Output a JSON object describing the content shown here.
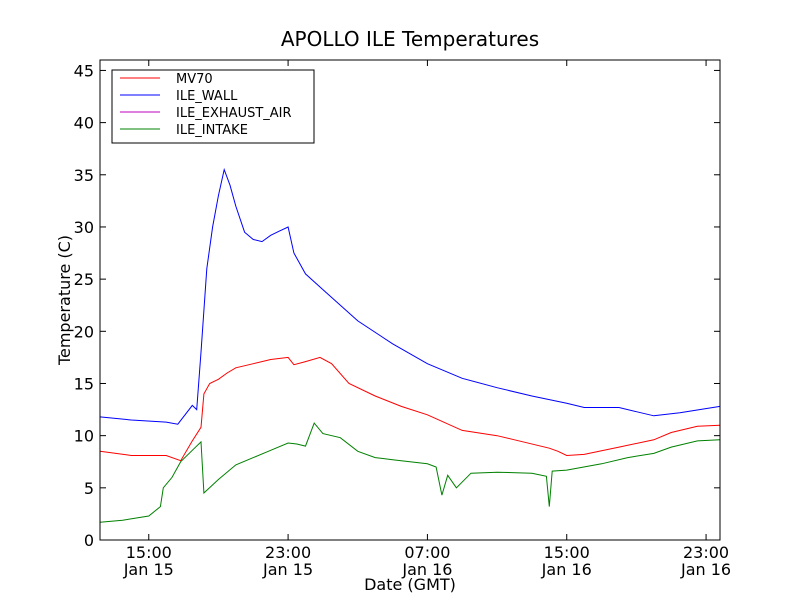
{
  "chart_data": {
    "type": "line",
    "title": "APOLLO ILE Temperatures",
    "xlabel": "Date (GMT)",
    "ylabel": "Temperature (C)",
    "ylim": [
      0,
      46
    ],
    "xlim": [
      "2014-01-15T12:12",
      "2014-01-16T23:48"
    ],
    "y_ticks": [
      0,
      5,
      10,
      15,
      20,
      25,
      30,
      35,
      40,
      45
    ],
    "x_ticks": [
      {
        "t": "2014-01-15T15:00",
        "time": "15:00",
        "date": "Jan 15"
      },
      {
        "t": "2014-01-15T23:00",
        "time": "23:00",
        "date": "Jan 15"
      },
      {
        "t": "2014-01-16T07:00",
        "time": "07:00",
        "date": "Jan 16"
      },
      {
        "t": "2014-01-16T15:00",
        "time": "15:00",
        "date": "Jan 16"
      },
      {
        "t": "2014-01-16T23:00",
        "time": "23:00",
        "date": "Jan 16"
      }
    ],
    "grid": false,
    "legend_placement": "top-left",
    "series": [
      {
        "name": "MV70",
        "color": "#ff0000",
        "points": [
          [
            "2014-01-15T12:12",
            8.5
          ],
          [
            "2014-01-15T14:00",
            8.1
          ],
          [
            "2014-01-15T16:00",
            8.1
          ],
          [
            "2014-01-15T16:50",
            7.6
          ],
          [
            "2014-01-15T17:30",
            9.5
          ],
          [
            "2014-01-15T18:00",
            10.8
          ],
          [
            "2014-01-15T18:10",
            14.0
          ],
          [
            "2014-01-15T18:30",
            15.0
          ],
          [
            "2014-01-15T19:00",
            15.4
          ],
          [
            "2014-01-15T19:30",
            16.0
          ],
          [
            "2014-01-15T20:00",
            16.5
          ],
          [
            "2014-01-15T21:00",
            16.9
          ],
          [
            "2014-01-15T22:00",
            17.3
          ],
          [
            "2014-01-15T23:00",
            17.5
          ],
          [
            "2014-01-15T23:20",
            16.8
          ],
          [
            "2014-01-16T00:00",
            17.1
          ],
          [
            "2014-01-16T00:50",
            17.5
          ],
          [
            "2014-01-16T01:30",
            16.9
          ],
          [
            "2014-01-16T02:30",
            15.0
          ],
          [
            "2014-01-16T04:00",
            13.8
          ],
          [
            "2014-01-16T05:30",
            12.8
          ],
          [
            "2014-01-16T07:00",
            12.0
          ],
          [
            "2014-01-16T09:00",
            10.5
          ],
          [
            "2014-01-16T11:00",
            10.0
          ],
          [
            "2014-01-16T12:00",
            9.6
          ],
          [
            "2014-01-16T14:00",
            8.8
          ],
          [
            "2014-01-16T14:30",
            8.5
          ],
          [
            "2014-01-16T15:00",
            8.1
          ],
          [
            "2014-01-16T16:00",
            8.2
          ],
          [
            "2014-01-16T18:00",
            8.9
          ],
          [
            "2014-01-16T20:00",
            9.6
          ],
          [
            "2014-01-16T21:00",
            10.3
          ],
          [
            "2014-01-16T22:30",
            10.9
          ],
          [
            "2014-01-16T23:48",
            11.0
          ]
        ]
      },
      {
        "name": "ILE_WALL",
        "color": "#0000ff",
        "points": [
          [
            "2014-01-15T12:12",
            11.8
          ],
          [
            "2014-01-15T14:00",
            11.5
          ],
          [
            "2014-01-15T16:00",
            11.3
          ],
          [
            "2014-01-15T16:40",
            11.1
          ],
          [
            "2014-01-15T17:30",
            12.9
          ],
          [
            "2014-01-15T17:45",
            12.5
          ],
          [
            "2014-01-15T18:00",
            18.0
          ],
          [
            "2014-01-15T18:20",
            26.0
          ],
          [
            "2014-01-15T18:40",
            30.0
          ],
          [
            "2014-01-15T19:00",
            33.0
          ],
          [
            "2014-01-15T19:20",
            35.5
          ],
          [
            "2014-01-15T19:40",
            34.0
          ],
          [
            "2014-01-15T20:00",
            32.0
          ],
          [
            "2014-01-15T20:30",
            29.5
          ],
          [
            "2014-01-15T21:00",
            28.8
          ],
          [
            "2014-01-15T21:30",
            28.6
          ],
          [
            "2014-01-15T22:00",
            29.2
          ],
          [
            "2014-01-15T22:30",
            29.6
          ],
          [
            "2014-01-15T23:00",
            30.0
          ],
          [
            "2014-01-15T23:20",
            27.5
          ],
          [
            "2014-01-16T00:00",
            25.5
          ],
          [
            "2014-01-16T01:00",
            24.0
          ],
          [
            "2014-01-16T03:00",
            21.0
          ],
          [
            "2014-01-16T05:00",
            18.8
          ],
          [
            "2014-01-16T07:00",
            16.9
          ],
          [
            "2014-01-16T09:00",
            15.5
          ],
          [
            "2014-01-16T11:00",
            14.6
          ],
          [
            "2014-01-16T13:00",
            13.8
          ],
          [
            "2014-01-16T15:00",
            13.1
          ],
          [
            "2014-01-16T16:00",
            12.7
          ],
          [
            "2014-01-16T18:00",
            12.7
          ],
          [
            "2014-01-16T19:00",
            12.3
          ],
          [
            "2014-01-16T20:00",
            11.9
          ],
          [
            "2014-01-16T21:30",
            12.2
          ],
          [
            "2014-01-16T23:48",
            12.8
          ]
        ]
      },
      {
        "name": "ILE_EXHAUST_AIR",
        "color": "#bf00bf",
        "points": []
      },
      {
        "name": "ILE_INTAKE",
        "color": "#008000",
        "points": [
          [
            "2014-01-15T12:12",
            1.7
          ],
          [
            "2014-01-15T13:30",
            1.9
          ],
          [
            "2014-01-15T15:00",
            2.3
          ],
          [
            "2014-01-15T15:40",
            3.2
          ],
          [
            "2014-01-15T15:50",
            5.0
          ],
          [
            "2014-01-15T16:20",
            6.0
          ],
          [
            "2014-01-15T16:50",
            7.5
          ],
          [
            "2014-01-15T17:30",
            8.6
          ],
          [
            "2014-01-15T18:00",
            9.4
          ],
          [
            "2014-01-15T18:10",
            4.5
          ],
          [
            "2014-01-15T19:00",
            5.8
          ],
          [
            "2014-01-15T20:00",
            7.2
          ],
          [
            "2014-01-15T21:00",
            7.9
          ],
          [
            "2014-01-15T22:00",
            8.6
          ],
          [
            "2014-01-15T23:00",
            9.3
          ],
          [
            "2014-01-15T23:30",
            9.2
          ],
          [
            "2014-01-16T00:00",
            9.0
          ],
          [
            "2014-01-16T00:30",
            11.2
          ],
          [
            "2014-01-16T01:00",
            10.2
          ],
          [
            "2014-01-16T02:00",
            9.8
          ],
          [
            "2014-01-16T03:00",
            8.5
          ],
          [
            "2014-01-16T04:00",
            7.9
          ],
          [
            "2014-01-16T05:00",
            7.7
          ],
          [
            "2014-01-16T06:00",
            7.5
          ],
          [
            "2014-01-16T07:00",
            7.3
          ],
          [
            "2014-01-16T07:30",
            7.0
          ],
          [
            "2014-01-16T07:50",
            4.3
          ],
          [
            "2014-01-16T08:10",
            6.2
          ],
          [
            "2014-01-16T08:40",
            5.0
          ],
          [
            "2014-01-16T09:30",
            6.4
          ],
          [
            "2014-01-16T11:00",
            6.5
          ],
          [
            "2014-01-16T13:00",
            6.4
          ],
          [
            "2014-01-16T13:50",
            6.1
          ],
          [
            "2014-01-16T14:00",
            3.2
          ],
          [
            "2014-01-16T14:10",
            6.6
          ],
          [
            "2014-01-16T15:00",
            6.7
          ],
          [
            "2014-01-16T17:00",
            7.3
          ],
          [
            "2014-01-16T18:30",
            7.9
          ],
          [
            "2014-01-16T20:00",
            8.3
          ],
          [
            "2014-01-16T21:00",
            8.9
          ],
          [
            "2014-01-16T22:30",
            9.5
          ],
          [
            "2014-01-16T23:48",
            9.6
          ]
        ]
      }
    ]
  }
}
